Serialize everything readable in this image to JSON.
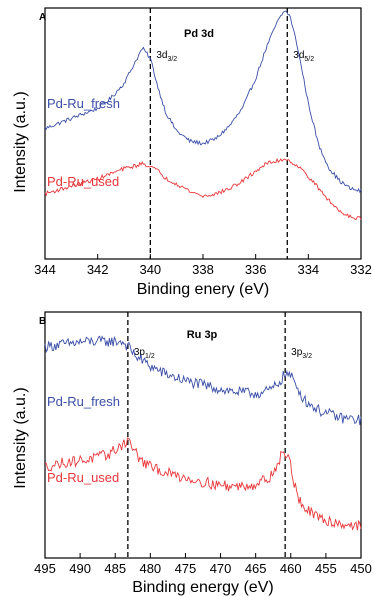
{
  "chart_data": [
    {
      "type": "line",
      "panel": "A",
      "title": "Pd 3d",
      "xlabel": "Binding enery (eV)",
      "ylabel": "Intensity (a.u.)",
      "xlim": [
        344,
        332
      ],
      "x_reversed": true,
      "xticks": [
        344,
        342,
        340,
        338,
        336,
        334,
        332
      ],
      "ylim": [
        0,
        1
      ],
      "grid": false,
      "peaks": [
        {
          "x": 340.0,
          "label_main": "3d",
          "label_sub": "3/2"
        },
        {
          "x": 334.8,
          "label_main": "3d",
          "label_sub": "5/2"
        }
      ],
      "series": [
        {
          "name": "Pd-Ru_fresh",
          "color": "#3b4fa8",
          "x": [
            344,
            343,
            342,
            341.5,
            341,
            340.6,
            340.3,
            340.0,
            339.7,
            339.4,
            339,
            338.5,
            338,
            337.5,
            337,
            336.5,
            336,
            335.6,
            335.2,
            334.9,
            334.7,
            334.4,
            334,
            333.6,
            333.2,
            332.8,
            332.4,
            332
          ],
          "y": [
            0.52,
            0.56,
            0.6,
            0.64,
            0.7,
            0.78,
            0.84,
            0.8,
            0.68,
            0.58,
            0.51,
            0.47,
            0.46,
            0.48,
            0.53,
            0.6,
            0.72,
            0.84,
            0.94,
            0.99,
            0.97,
            0.84,
            0.62,
            0.45,
            0.36,
            0.31,
            0.28,
            0.27
          ]
        },
        {
          "name": "Pd-Ru_used",
          "color": "#e8373a",
          "x": [
            344,
            343,
            342,
            341.5,
            341,
            340.6,
            340.3,
            340.0,
            339.7,
            339.4,
            339,
            338.5,
            338,
            337.5,
            337,
            336.5,
            336,
            335.6,
            335.2,
            334.9,
            334.7,
            334.4,
            334,
            333.6,
            333.2,
            332.8,
            332.4,
            332
          ],
          "y": [
            0.26,
            0.29,
            0.32,
            0.34,
            0.36,
            0.37,
            0.38,
            0.37,
            0.35,
            0.32,
            0.3,
            0.27,
            0.25,
            0.26,
            0.28,
            0.31,
            0.35,
            0.38,
            0.39,
            0.4,
            0.39,
            0.37,
            0.33,
            0.28,
            0.23,
            0.19,
            0.17,
            0.16
          ]
        }
      ]
    },
    {
      "type": "line",
      "panel": "B",
      "title": "Ru 3p",
      "xlabel": "Binding energy (eV)",
      "ylabel": "Intensity (a.u.)",
      "xlim": [
        495,
        450
      ],
      "x_reversed": true,
      "xticks": [
        495,
        490,
        485,
        480,
        475,
        470,
        465,
        460,
        455,
        450
      ],
      "ylim": [
        0,
        1
      ],
      "grid": false,
      "peaks": [
        {
          "x": 483.2,
          "label_main": "3p",
          "label_sub": "1/2"
        },
        {
          "x": 460.8,
          "label_main": "3p",
          "label_sub": "3/2"
        }
      ],
      "series": [
        {
          "name": "Pd-Ru_fresh",
          "color": "#3b4fa8",
          "x": [
            495,
            492,
            489,
            486,
            484,
            483.2,
            482,
            480,
            478,
            475,
            472,
            469,
            466,
            464,
            462.5,
            461.5,
            460.8,
            460,
            459,
            458,
            456,
            453,
            450
          ],
          "y": [
            0.86,
            0.87,
            0.88,
            0.88,
            0.88,
            0.86,
            0.82,
            0.78,
            0.75,
            0.72,
            0.7,
            0.68,
            0.67,
            0.67,
            0.69,
            0.72,
            0.75,
            0.74,
            0.69,
            0.64,
            0.6,
            0.57,
            0.56
          ]
        },
        {
          "name": "Pd-Ru_used",
          "color": "#e8373a",
          "x": [
            495,
            492,
            489,
            486,
            484.5,
            483.2,
            482.5,
            481.5,
            480,
            477,
            474,
            471,
            468,
            465,
            463,
            462,
            461.3,
            460.8,
            460,
            459.5,
            459,
            458,
            456,
            453,
            450
          ],
          "y": [
            0.37,
            0.39,
            0.4,
            0.42,
            0.45,
            0.48,
            0.45,
            0.4,
            0.37,
            0.34,
            0.32,
            0.3,
            0.29,
            0.3,
            0.33,
            0.37,
            0.42,
            0.43,
            0.38,
            0.3,
            0.25,
            0.2,
            0.16,
            0.14,
            0.13
          ]
        }
      ]
    }
  ]
}
